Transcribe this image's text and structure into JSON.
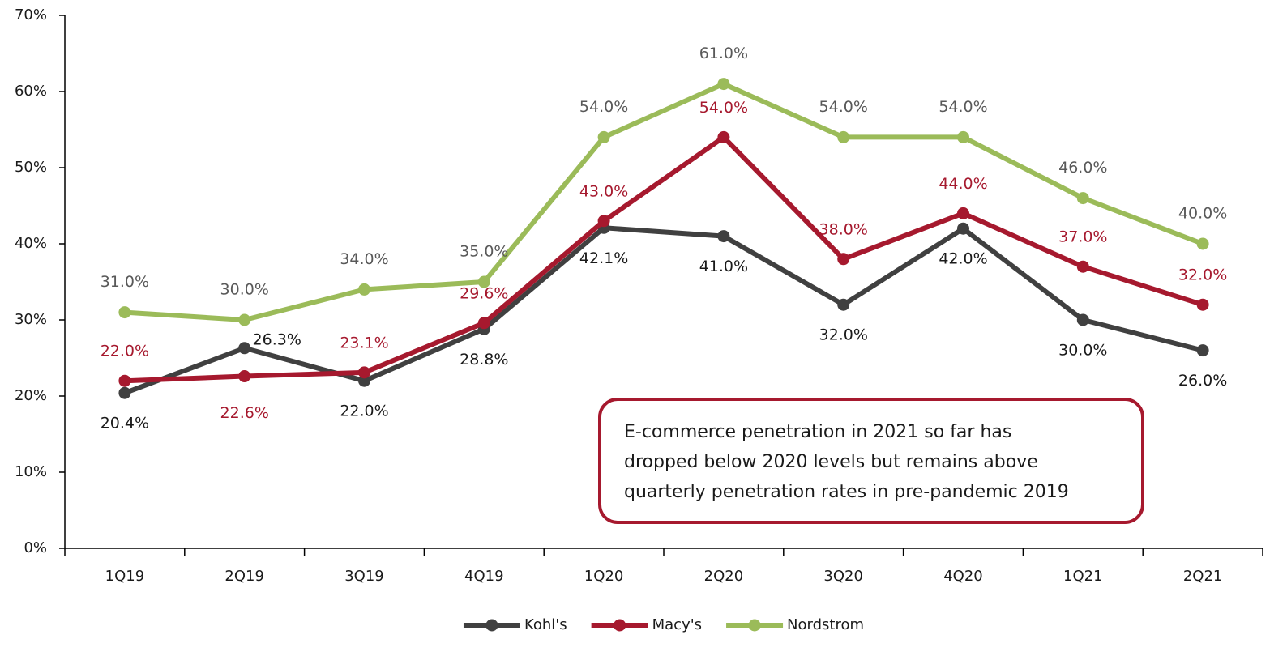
{
  "chart_data": {
    "type": "line",
    "categories": [
      "1Q19",
      "2Q19",
      "3Q19",
      "4Q19",
      "1Q20",
      "2Q20",
      "3Q20",
      "4Q20",
      "1Q21",
      "2Q21"
    ],
    "series": [
      {
        "name": "Kohl's",
        "color": "#404040",
        "label_color": "#1a1a1a",
        "values": [
          20.4,
          26.3,
          22.0,
          28.8,
          42.1,
          41.0,
          32.0,
          42.0,
          30.0,
          26.0
        ],
        "value_labels": [
          "20.4%",
          "26.3%",
          "22.0%",
          "28.8%",
          "42.1%",
          "41.0%",
          "32.0%",
          "42.0%",
          "30.0%",
          "26.0%"
        ]
      },
      {
        "name": "Macy's",
        "color": "#a6192e",
        "label_color": "#a6192e",
        "values": [
          22.0,
          22.6,
          23.1,
          29.6,
          43.0,
          54.0,
          38.0,
          44.0,
          37.0,
          32.0
        ],
        "value_labels": [
          "22.0%",
          "22.6%",
          "23.1%",
          "29.6%",
          "43.0%",
          "54.0%",
          "38.0%",
          "44.0%",
          "37.0%",
          "32.0%"
        ]
      },
      {
        "name": "Nordstrom",
        "color": "#9bbb59",
        "label_color": "#595959",
        "values": [
          31.0,
          30.0,
          34.0,
          35.0,
          54.0,
          61.0,
          54.0,
          54.0,
          46.0,
          40.0
        ],
        "value_labels": [
          "31.0%",
          "30.0%",
          "34.0%",
          "35.0%",
          "54.0%",
          "61.0%",
          "54.0%",
          "54.0%",
          "46.0%",
          "40.0%"
        ]
      }
    ],
    "ylim": [
      0,
      70
    ],
    "yticks": [
      {
        "value": 0,
        "label": "0%"
      },
      {
        "value": 10,
        "label": "10%"
      },
      {
        "value": 20,
        "label": "20%"
      },
      {
        "value": 30,
        "label": "30%"
      },
      {
        "value": 40,
        "label": "40%"
      },
      {
        "value": 50,
        "label": "50%"
      },
      {
        "value": 60,
        "label": "60%"
      },
      {
        "value": 70,
        "label": "70%"
      }
    ],
    "grid": false,
    "legend": "bottom",
    "annotation": [
      "E-commerce penetration in 2021 so far has",
      "dropped below 2020 levels but remains above",
      "quarterly penetration rates in pre-pandemic 2019"
    ],
    "annotation_color": "#a6192e"
  }
}
